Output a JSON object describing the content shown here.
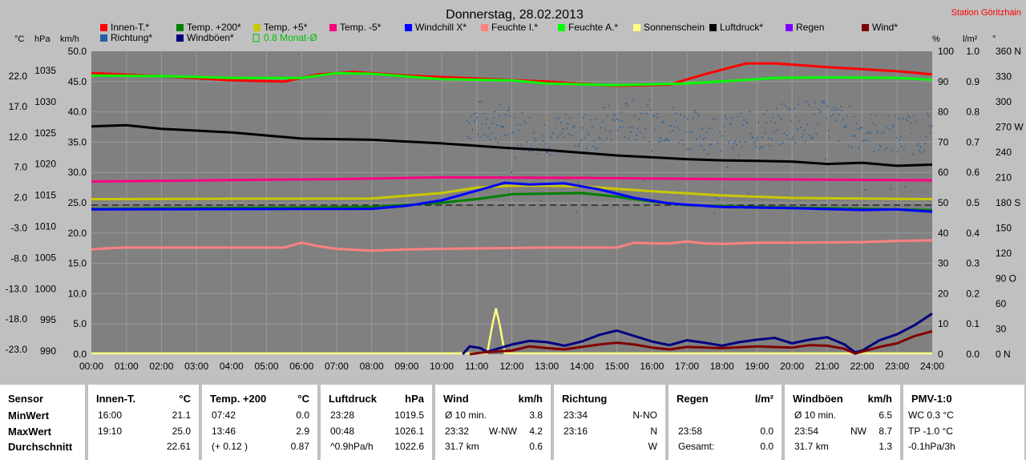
{
  "title": "Donnerstag, 28.02.2013",
  "station": "Station Göritzhain",
  "axis_units": {
    "c": "°C",
    "hpa": "hPa",
    "kmh": "km/h",
    "pct": "%",
    "lm2": "l/m²",
    "deg": "°"
  },
  "legend": [
    {
      "label": "Innen-T.*",
      "color": "#ff0000"
    },
    {
      "label": "Temp. +200*",
      "color": "#008000"
    },
    {
      "label": "Temp. +5*",
      "color": "#c8c800"
    },
    {
      "label": "Temp. -5*",
      "color": "#ff0080"
    },
    {
      "label": "Windchill X*",
      "color": "#0000ff"
    },
    {
      "label": "Feuchte I.*",
      "color": "#ff8080"
    },
    {
      "label": "Feuchte A.*",
      "color": "#00ff00"
    },
    {
      "label": "Sonnenschein",
      "color": "#ffff80"
    },
    {
      "label": "Luftdruck*",
      "color": "#000000"
    },
    {
      "label": "Regen",
      "color": "#8000ff"
    },
    {
      "label": "Wind*",
      "color": "#800000"
    },
    {
      "label": "Richtung*",
      "color": "#2060a0"
    },
    {
      "label": "Windböen*",
      "color": "#000080"
    },
    {
      "label": "0.8 Monat-Ø",
      "color": "#00c000"
    }
  ],
  "chart_data": {
    "type": "line",
    "title": "Donnerstag, 28.02.2013",
    "x_ticks": [
      "00:00",
      "01:00",
      "02:00",
      "03:00",
      "04:00",
      "05:00",
      "06:00",
      "07:00",
      "08:00",
      "09:00",
      "10:00",
      "11:00",
      "12:00",
      "13:00",
      "14:00",
      "15:00",
      "16:00",
      "17:00",
      "18:00",
      "19:00",
      "20:00",
      "21:00",
      "22:00",
      "23:00",
      "24:00"
    ],
    "left_axes": {
      "temp_c": [
        "22.0",
        "17.0",
        "12.0",
        "7.0",
        "2.0",
        "-3.0",
        "-8.0",
        "-13.0",
        "-18.0",
        "-23.0"
      ],
      "pressure_hpa": [
        "1035",
        "1030",
        "1025",
        "1020",
        "1015",
        "1010",
        "1005",
        "1000",
        "995",
        "990"
      ],
      "wind_kmh": [
        "50.0",
        "45.0",
        "40.0",
        "35.0",
        "30.0",
        "25.0",
        "20.0",
        "15.0",
        "10.0",
        "5.0",
        "0.0"
      ]
    },
    "right_axes": {
      "humidity_pct": [
        "100",
        "90",
        "80",
        "70",
        "60",
        "50",
        "40",
        "30",
        "20",
        "10",
        "0"
      ],
      "rain_lm2": [
        "1.0",
        "0.9",
        "0.8",
        "0.7",
        "0.6",
        "0.5",
        "0.4",
        "0.3",
        "0.2",
        "0.1",
        "0.0"
      ],
      "direction_deg": [
        "360 N",
        "330",
        "300",
        "270 W",
        "240",
        "210",
        "180 S",
        "150",
        "120",
        "90 O",
        "60",
        "30",
        "0 N"
      ]
    },
    "ylim_kmh": [
      0,
      50
    ],
    "series": [
      {
        "name": "Innen-T.*",
        "color": "#ff0000",
        "axis": "kmh",
        "points": [
          [
            0,
            46.4
          ],
          [
            2,
            45.9
          ],
          [
            4,
            45.2
          ],
          [
            5.5,
            45.0
          ],
          [
            6.5,
            46.2
          ],
          [
            7.5,
            46.6
          ],
          [
            9,
            46.0
          ],
          [
            11,
            45.5
          ],
          [
            13,
            45.0
          ],
          [
            15,
            44.3
          ],
          [
            16.5,
            44.5
          ],
          [
            17.5,
            46.2
          ],
          [
            18.7,
            48.0
          ],
          [
            19.5,
            48.0
          ],
          [
            21,
            47.4
          ],
          [
            23,
            46.7
          ],
          [
            24,
            46.2
          ]
        ]
      },
      {
        "name": "Feuchte A.*",
        "color": "#00ff00",
        "axis": "kmh",
        "points": [
          [
            0,
            46.0
          ],
          [
            2,
            45.9
          ],
          [
            4,
            45.6
          ],
          [
            6,
            45.6
          ],
          [
            7,
            46.4
          ],
          [
            8,
            46.3
          ],
          [
            10,
            45.4
          ],
          [
            12,
            45.2
          ],
          [
            13,
            44.7
          ],
          [
            15,
            44.4
          ],
          [
            17,
            44.7
          ],
          [
            18.5,
            45.2
          ],
          [
            19.5,
            45.6
          ],
          [
            21,
            45.7
          ],
          [
            23,
            45.6
          ],
          [
            24,
            45.3
          ]
        ]
      },
      {
        "name": "Luftdruck*",
        "color": "#000000",
        "axis": "kmh",
        "points": [
          [
            0,
            37.6
          ],
          [
            1,
            37.8
          ],
          [
            2,
            37.2
          ],
          [
            4,
            36.6
          ],
          [
            6,
            35.6
          ],
          [
            8,
            35.4
          ],
          [
            10,
            34.8
          ],
          [
            12,
            34.0
          ],
          [
            13,
            33.7
          ],
          [
            15,
            32.8
          ],
          [
            16,
            32.5
          ],
          [
            17,
            32.2
          ],
          [
            18,
            32.0
          ],
          [
            19,
            31.9
          ],
          [
            20,
            31.8
          ],
          [
            21,
            31.4
          ],
          [
            22,
            31.6
          ],
          [
            23,
            31.1
          ],
          [
            24,
            31.3
          ]
        ]
      },
      {
        "name": "Temp. -5*",
        "color": "#ff0080",
        "axis": "kmh",
        "points": [
          [
            0,
            28.5
          ],
          [
            5,
            28.8
          ],
          [
            7,
            28.9
          ],
          [
            10,
            29.2
          ],
          [
            14,
            29.1
          ],
          [
            18,
            28.9
          ],
          [
            24,
            28.7
          ]
        ]
      },
      {
        "name": "Temp. +5*",
        "color": "#c8c800",
        "axis": "kmh",
        "points": [
          [
            0,
            25.6
          ],
          [
            8,
            25.7
          ],
          [
            10,
            26.6
          ],
          [
            11,
            27.5
          ],
          [
            12,
            27.8
          ],
          [
            13,
            27.8
          ],
          [
            14,
            27.7
          ],
          [
            16,
            26.9
          ],
          [
            18,
            26.2
          ],
          [
            20,
            25.8
          ],
          [
            22,
            25.7
          ],
          [
            24,
            25.6
          ]
        ]
      },
      {
        "name": "Temp. +200*",
        "color": "#008000",
        "axis": "kmh",
        "points": [
          [
            0,
            24.0
          ],
          [
            8,
            24.3
          ],
          [
            10,
            25.0
          ],
          [
            11,
            25.6
          ],
          [
            12,
            26.4
          ],
          [
            14,
            26.6
          ],
          [
            15,
            26.0
          ],
          [
            16,
            25.2
          ],
          [
            17,
            24.6
          ],
          [
            19,
            24.3
          ],
          [
            21,
            24.1
          ],
          [
            24,
            23.8
          ]
        ]
      },
      {
        "name": "Windchill X*",
        "color": "#0000ff",
        "axis": "kmh",
        "points": [
          [
            0,
            23.9
          ],
          [
            8,
            24.0
          ],
          [
            9,
            24.5
          ],
          [
            10,
            25.4
          ],
          [
            11,
            27.0
          ],
          [
            11.8,
            28.3
          ],
          [
            12.5,
            28.0
          ],
          [
            13.5,
            28.2
          ],
          [
            14.5,
            27.2
          ],
          [
            15.5,
            25.8
          ],
          [
            16.5,
            24.9
          ],
          [
            18,
            24.3
          ],
          [
            20,
            24.1
          ],
          [
            22,
            23.8
          ],
          [
            23,
            23.9
          ],
          [
            24,
            23.5
          ]
        ]
      },
      {
        "name": "Feuchte I.*",
        "color": "#ff8080",
        "axis": "kmh",
        "points": [
          [
            0,
            17.3
          ],
          [
            0.5,
            17.5
          ],
          [
            1,
            17.6
          ],
          [
            5.5,
            17.6
          ],
          [
            6,
            18.4
          ],
          [
            6.5,
            17.8
          ],
          [
            7,
            17.4
          ],
          [
            8,
            17.1
          ],
          [
            9,
            17.3
          ],
          [
            10,
            17.4
          ],
          [
            13,
            17.6
          ],
          [
            15,
            17.6
          ],
          [
            15.5,
            18.4
          ],
          [
            16,
            18.3
          ],
          [
            16.5,
            18.3
          ],
          [
            17,
            18.6
          ],
          [
            17.5,
            18.3
          ],
          [
            18,
            18.2
          ],
          [
            19,
            18.4
          ],
          [
            20,
            18.4
          ],
          [
            22,
            18.5
          ],
          [
            23,
            18.7
          ],
          [
            24,
            18.8
          ]
        ]
      },
      {
        "name": "Sonnenschein",
        "color": "#ffff80",
        "axis": "kmh",
        "points": [
          [
            0,
            0.15
          ],
          [
            11.3,
            0.15
          ],
          [
            11.45,
            5.0
          ],
          [
            11.55,
            7.5
          ],
          [
            11.65,
            5.0
          ],
          [
            11.8,
            0.15
          ],
          [
            24,
            0.15
          ]
        ]
      },
      {
        "name": "Windböen*",
        "color": "#000080",
        "axis": "kmh",
        "points": [
          [
            10.6,
            0
          ],
          [
            10.8,
            1.3
          ],
          [
            11.1,
            1.0
          ],
          [
            11.3,
            0.4
          ],
          [
            12,
            1.6
          ],
          [
            12.5,
            2.2
          ],
          [
            13,
            2.0
          ],
          [
            13.5,
            1.4
          ],
          [
            14,
            2.1
          ],
          [
            14.5,
            3.2
          ],
          [
            15,
            3.9
          ],
          [
            15.5,
            3.0
          ],
          [
            16,
            2.1
          ],
          [
            16.5,
            1.5
          ],
          [
            17,
            2.3
          ],
          [
            17.5,
            1.9
          ],
          [
            18,
            1.4
          ],
          [
            18.5,
            2.0
          ],
          [
            19,
            2.4
          ],
          [
            19.5,
            2.7
          ],
          [
            20,
            1.8
          ],
          [
            20.5,
            2.4
          ],
          [
            21,
            2.8
          ],
          [
            21.5,
            1.6
          ],
          [
            21.8,
            0.3
          ],
          [
            22,
            0.6
          ],
          [
            22.5,
            2.3
          ],
          [
            23,
            3.3
          ],
          [
            23.5,
            4.8
          ],
          [
            24,
            6.7
          ]
        ]
      },
      {
        "name": "Wind*",
        "color": "#800000",
        "axis": "kmh",
        "points": [
          [
            10.8,
            0
          ],
          [
            11.2,
            0.3
          ],
          [
            12,
            0.6
          ],
          [
            12.5,
            1.3
          ],
          [
            13,
            1.0
          ],
          [
            13.5,
            0.8
          ],
          [
            14,
            1.2
          ],
          [
            14.5,
            1.6
          ],
          [
            15,
            1.9
          ],
          [
            15.5,
            1.6
          ],
          [
            16,
            1.1
          ],
          [
            16.5,
            0.8
          ],
          [
            17,
            1.2
          ],
          [
            18,
            1.0
          ],
          [
            19,
            1.3
          ],
          [
            20,
            1.1
          ],
          [
            20.5,
            1.5
          ],
          [
            21,
            1.4
          ],
          [
            21.5,
            0.9
          ],
          [
            21.8,
            0.1
          ],
          [
            22.5,
            1.2
          ],
          [
            23,
            1.8
          ],
          [
            23.5,
            3.0
          ],
          [
            24,
            3.8
          ]
        ]
      }
    ],
    "reference_line_kmh": 24.6,
    "direction_scatter": {
      "name": "Richtung*",
      "color": "#2060a0",
      "from_hour": 10.7,
      "to_hour": 24,
      "center_kmh": 37.5,
      "spread_kmh": 3.5,
      "count": 420
    }
  },
  "summary": [
    {
      "header": "Sensor",
      "unit": "",
      "is_label_panel": true,
      "rows": [
        {
          "label": "MinWert"
        },
        {
          "label": "MaxWert"
        },
        {
          "label": "Durchschnitt"
        }
      ]
    },
    {
      "header": "Innen-T.",
      "unit": "°C",
      "rows": [
        {
          "a": "16:00",
          "b": "21.1"
        },
        {
          "a": "19:10",
          "b": "25.0"
        },
        {
          "a": "",
          "b": "22.61"
        }
      ]
    },
    {
      "header": "Temp. +200",
      "unit": "°C",
      "rows": [
        {
          "a": "07:42",
          "b": "0.0"
        },
        {
          "a": "13:46",
          "b": "2.9"
        },
        {
          "a": "(+ 0.12 )",
          "b": "0.87"
        }
      ]
    },
    {
      "header": "Luftdruck",
      "unit": "hPa",
      "rows": [
        {
          "a": "23:28",
          "b": "1019.5"
        },
        {
          "a": "00:48",
          "b": "1026.1"
        },
        {
          "a": "^0.9hPa/h",
          "b": "1022.6"
        }
      ]
    },
    {
      "header": "Wind",
      "unit": "km/h",
      "rows": [
        {
          "a": "Ø 10 min.",
          "b": "3.8"
        },
        {
          "a": "23:32",
          "m": "W-NW",
          "b": "4.2"
        },
        {
          "a": "31.7 km",
          "b": "0.6"
        }
      ]
    },
    {
      "header": "Richtung",
      "unit": "",
      "rows": [
        {
          "a": "23:34",
          "b": "N-NO"
        },
        {
          "a": "23:16",
          "b": "N"
        },
        {
          "a": "",
          "b": "W"
        }
      ]
    },
    {
      "header": "Regen",
      "unit": "l/m²",
      "rows": [
        {
          "a": "",
          "b": ""
        },
        {
          "a": "23:58",
          "b": "0.0"
        },
        {
          "a": "Gesamt:",
          "b": "0.0"
        }
      ]
    },
    {
      "header": "Windböen",
      "unit": "km/h",
      "rows": [
        {
          "a": "Ø 10 min.",
          "b": "6.5"
        },
        {
          "a": "23:54",
          "m": "NW",
          "b": "8.7"
        },
        {
          "a": "31.7 km",
          "b": "1.3"
        }
      ]
    },
    {
      "header": "PMV-1:0",
      "unit": "",
      "rows": [
        {
          "a": "WC 0.3 °C",
          "b": ""
        },
        {
          "a": "TP -1.0 °C",
          "b": ""
        },
        {
          "a": "-0.1hPa/3h",
          "b": ""
        }
      ]
    }
  ]
}
